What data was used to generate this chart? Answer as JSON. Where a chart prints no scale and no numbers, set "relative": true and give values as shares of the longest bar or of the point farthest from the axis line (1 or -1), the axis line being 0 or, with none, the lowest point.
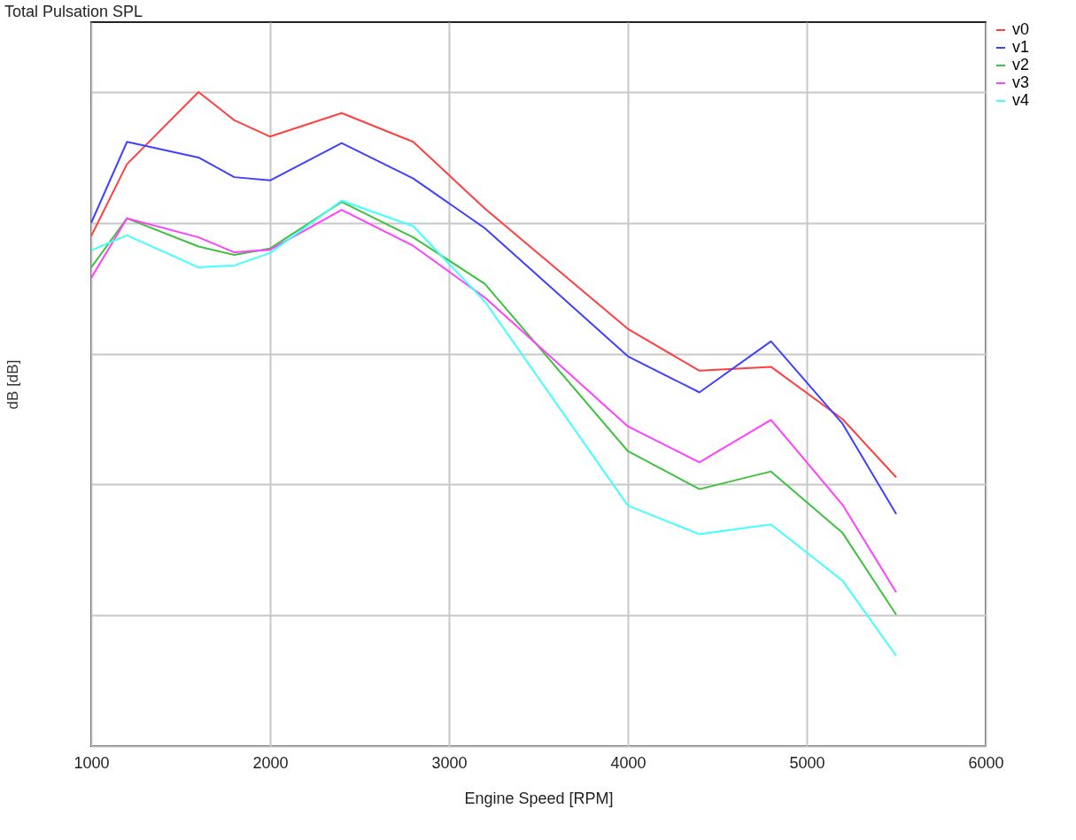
{
  "chart_data": {
    "type": "line",
    "title": "Total Pulsation SPL",
    "xlabel": "Engine Speed [RPM]",
    "ylabel": "dB [dB]",
    "relative": true,
    "x": [
      1000,
      1200,
      1600,
      1800,
      2000,
      2400,
      2800,
      3200,
      4000,
      4400,
      4800,
      5200,
      5500
    ],
    "xlim": [
      1000,
      6000
    ],
    "xticks": [
      1000,
      2000,
      3000,
      4000,
      5000,
      6000
    ],
    "grid": true,
    "legend": "top right",
    "marker": "none",
    "line_style": "solid",
    "series": [
      {
        "name": "v0",
        "color": "#ff4040",
        "values": [
          0.78,
          0.89,
          1.0,
          0.957,
          0.932,
          0.968,
          0.924,
          0.822,
          0.638,
          0.574,
          0.58,
          0.5,
          0.411
        ]
      },
      {
        "name": "v1",
        "color": "#4040ff",
        "values": [
          0.8,
          0.924,
          0.9,
          0.87,
          0.865,
          0.922,
          0.868,
          0.792,
          0.596,
          0.541,
          0.619,
          0.493,
          0.355
        ]
      },
      {
        "name": "v2",
        "color": "#40c040",
        "values": [
          0.732,
          0.807,
          0.764,
          0.751,
          0.761,
          0.832,
          0.778,
          0.707,
          0.451,
          0.393,
          0.42,
          0.326,
          0.201
        ]
      },
      {
        "name": "v3",
        "color": "#ff40ff",
        "values": [
          0.716,
          0.807,
          0.778,
          0.755,
          0.759,
          0.82,
          0.765,
          0.686,
          0.489,
          0.434,
          0.499,
          0.369,
          0.235
        ]
      },
      {
        "name": "v4",
        "color": "#40ffff",
        "values": [
          0.758,
          0.781,
          0.732,
          0.735,
          0.754,
          0.834,
          0.795,
          0.68,
          0.368,
          0.324,
          0.339,
          0.253,
          0.138
        ]
      }
    ]
  }
}
